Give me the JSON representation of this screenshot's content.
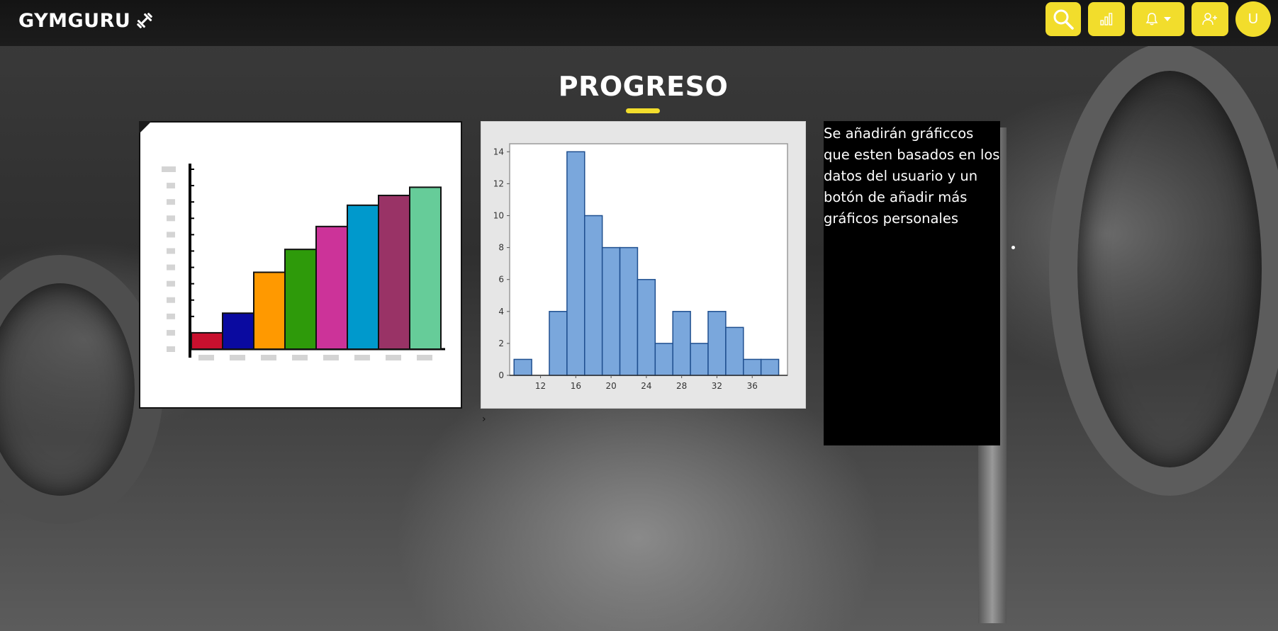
{
  "navbar": {
    "brand": "GYMGURU",
    "brand_icon": "dumbbell-icon",
    "actions": [
      {
        "name": "search-button",
        "icon": "search-icon"
      },
      {
        "name": "stats-button",
        "icon": "bar-chart-icon"
      },
      {
        "name": "notifications-button",
        "icon": "bell-icon",
        "has_dropdown": true
      },
      {
        "name": "add-user-button",
        "icon": "user-plus-icon"
      }
    ],
    "avatar_initial": "U",
    "accent_color": "#f2dd2c"
  },
  "page": {
    "title": "PROGRESO",
    "info_text": "Se añadirán gráficcos que esten basados en los datos del usuario y un botón de añadir más gráficos personales"
  },
  "chart_data": [
    {
      "type": "bar",
      "categories": [
        "",
        "",
        "",
        "",
        "",
        "",
        "",
        ""
      ],
      "values": [
        1,
        2.2,
        4.7,
        6.1,
        7.5,
        8.8,
        9.4,
        9.9
      ],
      "ylim": [
        0,
        11
      ],
      "colors": [
        "#c8102e",
        "#0a0aa0",
        "#ff9900",
        "#2e9a0a",
        "#cc3399",
        "#0099cc",
        "#993366",
        "#66cc99"
      ],
      "grid": false
    },
    {
      "type": "bar",
      "subtype": "histogram",
      "x_ticks": [
        12,
        16,
        20,
        24,
        28,
        32,
        36
      ],
      "y_ticks": [
        0,
        2,
        4,
        6,
        8,
        10,
        12,
        14
      ],
      "bin_start": 9,
      "bin_width": 2,
      "values": [
        1,
        0,
        4,
        14,
        10,
        8,
        8,
        6,
        2,
        4,
        2,
        4,
        3,
        1,
        1
      ],
      "xlim": [
        8.5,
        40
      ],
      "ylim": [
        0,
        14.5
      ],
      "color": "#7aa7dc",
      "edge_color": "#1f4f8f",
      "grid": false
    }
  ]
}
